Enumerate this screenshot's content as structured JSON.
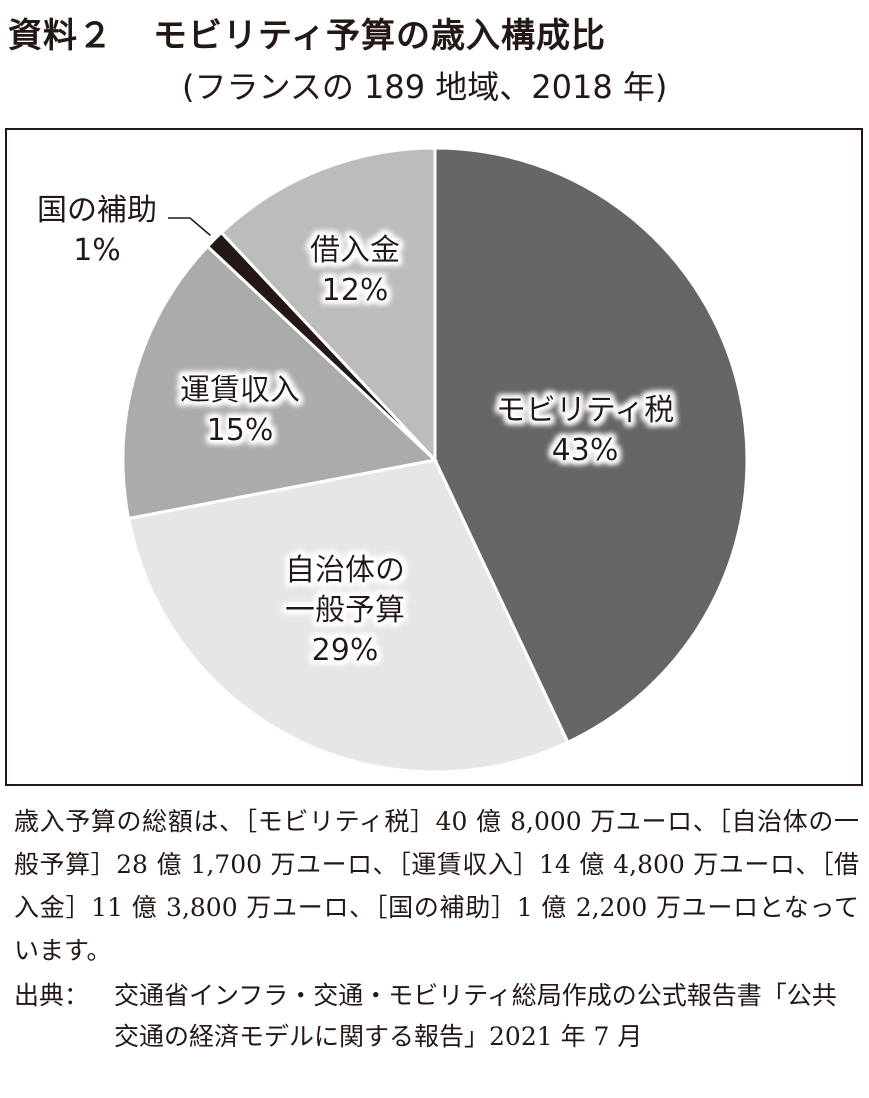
{
  "title": {
    "number": "資料２",
    "text": "モビリティ予算の歳入構成比",
    "subtitle": "(フランスの 189 地域、2018 年)"
  },
  "chart_data": {
    "type": "pie",
    "title": "モビリティ予算の歳入構成比",
    "subtitle": "(フランスの 189 地域、2018 年)",
    "slices": [
      {
        "label": "モビリティ税",
        "value": 43,
        "value_label": "43%",
        "color": "#666666"
      },
      {
        "label": "自治体の一般予算",
        "label_lines": [
          "自治体の",
          "一般予算"
        ],
        "value": 29,
        "value_label": "29%",
        "color": "#e6e6e6"
      },
      {
        "label": "運賃収入",
        "value": 15,
        "value_label": "15%",
        "color": "#ababab"
      },
      {
        "label": "国の補助",
        "value": 1,
        "value_label": "1%",
        "color": "#231815"
      },
      {
        "label": "借入金",
        "value": 12,
        "value_label": "12%",
        "color": "#bcbcbc"
      }
    ],
    "start": "top",
    "direction": "clockwise"
  },
  "note": "歳入予算の総額は、［モビリティ税］40 億 8,000 万ユーロ、［自治体の一般予算］28 億 1,700 万ユーロ、［運賃収入］14 億 4,800 万ユーロ、［借入金］11 億 3,800 万ユーロ、［国の補助］1 億 2,200 万ユーロとなっています。",
  "source": {
    "label": "出典：",
    "text": "交通省インフラ・交通・モビリティ総局作成の公式報告書「公共交通の経済モデルに関する報告」2021 年 7 月"
  }
}
